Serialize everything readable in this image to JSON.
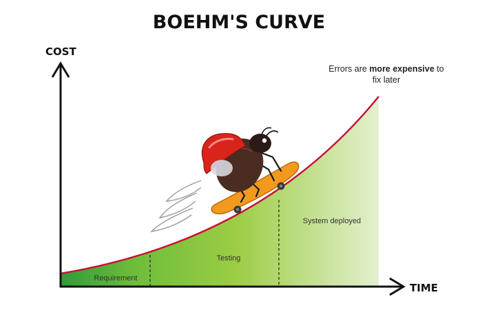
{
  "title": "BOEHM'S CURVE",
  "axes": {
    "y_label": "COST",
    "x_label": "TIME"
  },
  "regions": {
    "requirement": "Requirement",
    "testing": "Testing",
    "system_deployed": "System deployed"
  },
  "annotation": {
    "line1_prefix": "Errors are ",
    "line1_bold": "more expensive",
    "line1_suffix": " to",
    "line2": "fix later"
  },
  "colors": {
    "curve": "#c8103a",
    "requirement_fill": "#3fa535",
    "testing_fill": "#8cc63f",
    "deployed_fill": "#c9e2a0",
    "ladybug_shell": "#d9241c",
    "skateboard": "#f39a1e",
    "axis": "#111111"
  },
  "illustration": {
    "subject": "ladybug-on-skateboard",
    "icons": [
      "ladybug-icon",
      "skateboard-icon",
      "motion-lines-icon"
    ]
  }
}
